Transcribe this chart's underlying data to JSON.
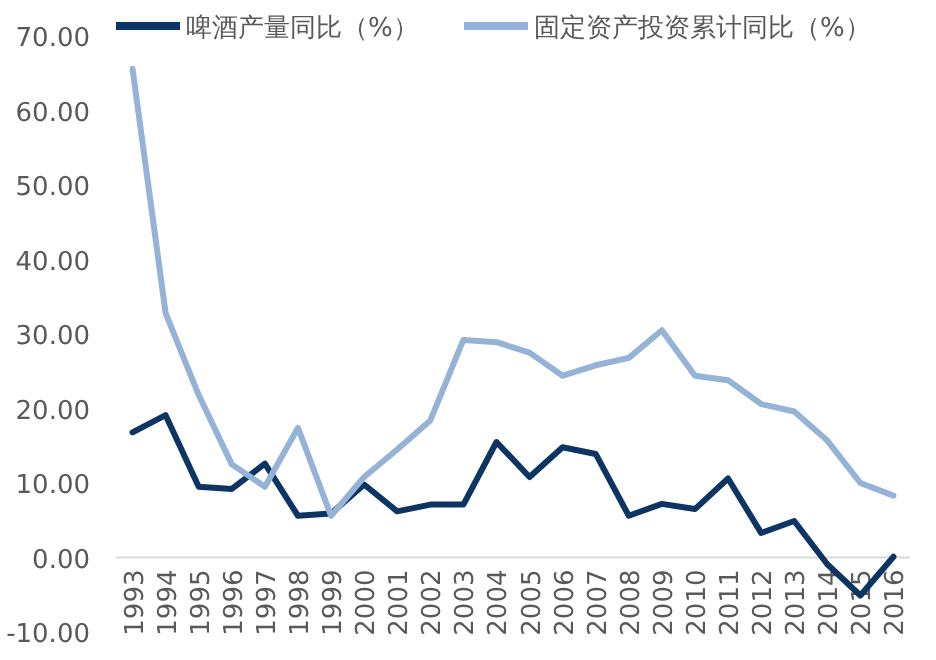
{
  "chart_data": {
    "type": "line",
    "legend": "top",
    "categories": [
      "1993",
      "1994",
      "1995",
      "1996",
      "1997",
      "1998",
      "1999",
      "2000",
      "2001",
      "2002",
      "2003",
      "2004",
      "2005",
      "2006",
      "2007",
      "2008",
      "2009",
      "2010",
      "2011",
      "2012",
      "2013",
      "2014",
      "2015",
      "2016"
    ],
    "series": [
      {
        "name": "啤酒产量同比（%）",
        "color": "#0d3563",
        "values": [
          16.8,
          19.1,
          9.5,
          9.2,
          12.6,
          5.6,
          5.9,
          9.8,
          6.2,
          7.1,
          7.1,
          15.5,
          10.8,
          14.8,
          13.9,
          5.6,
          7.2,
          6.5,
          10.6,
          3.3,
          4.9,
          -0.9,
          -5.1,
          0.1
        ]
      },
      {
        "name": "固定资产投资累计同比（%）",
        "color": "#95b3d7",
        "values": [
          65.6,
          32.8,
          21.8,
          12.5,
          9.5,
          17.4,
          5.6,
          10.8,
          14.5,
          18.4,
          29.2,
          28.9,
          27.5,
          24.4,
          25.8,
          26.8,
          30.5,
          24.4,
          23.8,
          20.6,
          19.6,
          15.7,
          10.0,
          8.3
        ]
      }
    ],
    "ylim": [
      -10,
      70
    ],
    "yticks": [
      {
        "value": -10,
        "label": "-10.00"
      },
      {
        "value": 0,
        "label": "0.00"
      },
      {
        "value": 10,
        "label": "10.00"
      },
      {
        "value": 20,
        "label": "20.00"
      },
      {
        "value": 30,
        "label": "30.00"
      },
      {
        "value": 40,
        "label": "40.00"
      },
      {
        "value": 50,
        "label": "50.00"
      },
      {
        "value": 60,
        "label": "60.00"
      },
      {
        "value": 70,
        "label": "70.00"
      }
    ]
  }
}
